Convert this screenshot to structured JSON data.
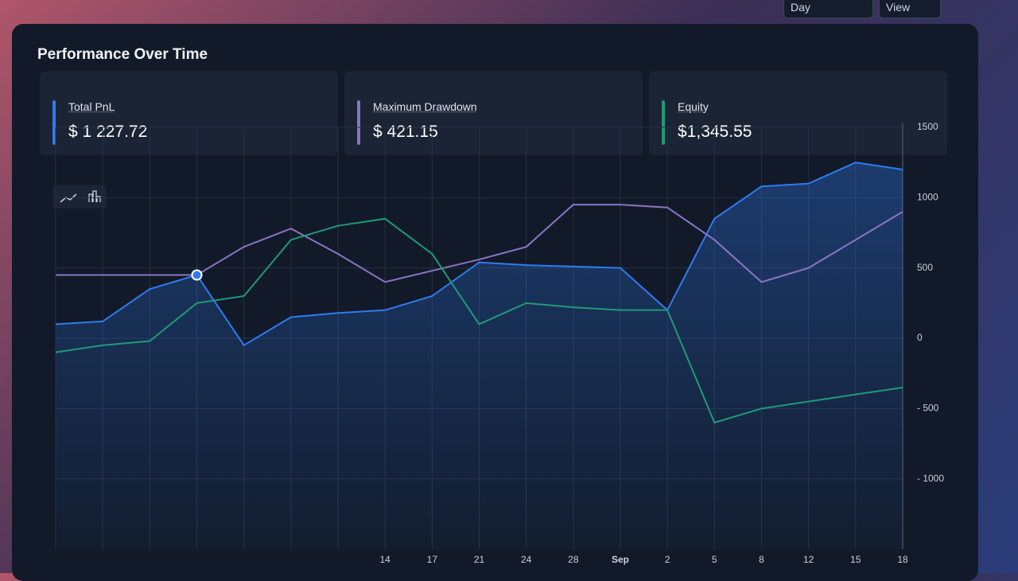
{
  "header": {
    "title": "Performance Over Time",
    "dropdown": "Day",
    "view_button": "View"
  },
  "stats": [
    {
      "value": "$ 1 227.72"
    },
    {
      "value": "$ 421.15"
    },
    {
      "value": "$1,345.55"
    }
  ],
  "chart_data": {
    "type": "line",
    "categories": [
      null,
      null,
      null,
      null,
      null,
      null,
      null,
      "14",
      "17",
      "21",
      "24",
      "28",
      "Sep",
      "2",
      "5",
      "8",
      "12",
      "15",
      "18"
    ],
    "series": [
      {
        "name": "Total PnL",
        "color": "#2f7bf0",
        "values": [
          100,
          120,
          350,
          450,
          -50,
          150,
          180,
          200,
          300,
          540,
          520,
          510,
          500,
          200,
          850,
          1080,
          1100,
          1250,
          1200
        ]
      },
      {
        "name": "Maximum Drawdown",
        "color": "#8b74c4",
        "values": [
          450,
          450,
          450,
          450,
          650,
          780,
          600,
          400,
          480,
          560,
          650,
          950,
          950,
          930,
          700,
          400,
          500,
          700,
          900
        ]
      },
      {
        "name": "Equity",
        "color": "#1f9a78",
        "values": [
          -100,
          -50,
          -20,
          250,
          300,
          700,
          800,
          850,
          600,
          100,
          250,
          220,
          200,
          200,
          -600,
          -500,
          -450,
          -400,
          -350
        ]
      }
    ],
    "ylim": [
      -1500,
      1500
    ],
    "yticks": [
      1500,
      1000,
      500,
      0,
      {
        "value": -500,
        "label": "- 500"
      },
      {
        "value": -1000,
        "label": "- 1000"
      }
    ],
    "grid": true
  }
}
